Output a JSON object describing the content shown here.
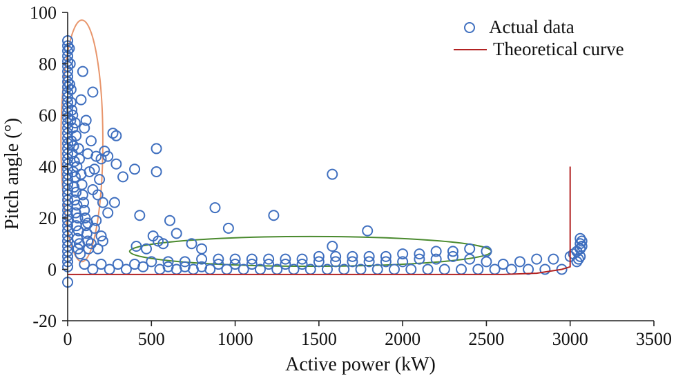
{
  "chart_data": {
    "type": "scatter",
    "title": "",
    "xlabel": "Active power (kW)",
    "ylabel": "Pitch angle (°)",
    "xlim": [
      0,
      3500
    ],
    "ylim": [
      -20,
      100
    ],
    "xticks": [
      "0",
      "500",
      "1000",
      "1500",
      "2000",
      "2500",
      "3000",
      "3500"
    ],
    "yticks": [
      "-20",
      "0",
      "20",
      "40",
      "60",
      "80",
      "100"
    ],
    "grid": false,
    "legend_position": "top-right",
    "series": [
      {
        "name": "Actual data",
        "marker": "open-circle",
        "color": "#3f6fbf",
        "points": [
          [
            0,
            89
          ],
          [
            0,
            87
          ],
          [
            0,
            85
          ],
          [
            0,
            83
          ],
          [
            0,
            81
          ],
          [
            0,
            79
          ],
          [
            0,
            77
          ],
          [
            0,
            75
          ],
          [
            0,
            73
          ],
          [
            0,
            71
          ],
          [
            0,
            69
          ],
          [
            0,
            67
          ],
          [
            0,
            65
          ],
          [
            0,
            63
          ],
          [
            0,
            61
          ],
          [
            0,
            59
          ],
          [
            0,
            57
          ],
          [
            0,
            55
          ],
          [
            0,
            53
          ],
          [
            0,
            51
          ],
          [
            0,
            49
          ],
          [
            0,
            47
          ],
          [
            0,
            45
          ],
          [
            0,
            43
          ],
          [
            0,
            41
          ],
          [
            0,
            39
          ],
          [
            0,
            37
          ],
          [
            0,
            35
          ],
          [
            0,
            33
          ],
          [
            0,
            31
          ],
          [
            0,
            29
          ],
          [
            0,
            27
          ],
          [
            0,
            25
          ],
          [
            0,
            23
          ],
          [
            0,
            21
          ],
          [
            0,
            19
          ],
          [
            0,
            17
          ],
          [
            0,
            15
          ],
          [
            0,
            13
          ],
          [
            0,
            11
          ],
          [
            0,
            9
          ],
          [
            0,
            7
          ],
          [
            0,
            5
          ],
          [
            0,
            3
          ],
          [
            0,
            1
          ],
          [
            0,
            -5
          ],
          [
            10,
            86
          ],
          [
            15,
            80
          ],
          [
            12,
            72
          ],
          [
            20,
            70
          ],
          [
            25,
            62
          ],
          [
            18,
            58
          ],
          [
            30,
            55
          ],
          [
            22,
            50
          ],
          [
            35,
            48
          ],
          [
            28,
            45
          ],
          [
            40,
            42
          ],
          [
            33,
            38
          ],
          [
            45,
            36
          ],
          [
            38,
            32
          ],
          [
            50,
            30
          ],
          [
            42,
            27
          ],
          [
            55,
            25
          ],
          [
            48,
            22
          ],
          [
            60,
            20
          ],
          [
            52,
            17
          ],
          [
            65,
            15
          ],
          [
            58,
            12
          ],
          [
            70,
            10
          ],
          [
            62,
            8
          ],
          [
            75,
            6
          ],
          [
            20,
            65
          ],
          [
            30,
            60
          ],
          [
            45,
            57
          ],
          [
            50,
            52
          ],
          [
            65,
            47
          ],
          [
            70,
            43
          ],
          [
            55,
            40
          ],
          [
            80,
            37
          ],
          [
            85,
            33
          ],
          [
            90,
            29
          ],
          [
            95,
            26
          ],
          [
            100,
            23
          ],
          [
            105,
            20
          ],
          [
            110,
            17
          ],
          [
            115,
            14
          ],
          [
            120,
            11
          ],
          [
            125,
            8
          ],
          [
            90,
            77
          ],
          [
            150,
            69
          ],
          [
            80,
            66
          ],
          [
            110,
            58
          ],
          [
            100,
            55
          ],
          [
            140,
            50
          ],
          [
            120,
            45
          ],
          [
            170,
            44
          ],
          [
            220,
            46
          ],
          [
            200,
            43
          ],
          [
            160,
            39
          ],
          [
            130,
            38
          ],
          [
            190,
            35
          ],
          [
            150,
            31
          ],
          [
            180,
            29
          ],
          [
            210,
            26
          ],
          [
            240,
            22
          ],
          [
            170,
            19
          ],
          [
            120,
            18
          ],
          [
            160,
            16
          ],
          [
            200,
            13
          ],
          [
            140,
            10
          ],
          [
            180,
            8
          ],
          [
            270,
            53
          ],
          [
            290,
            52
          ],
          [
            240,
            44
          ],
          [
            290,
            41
          ],
          [
            330,
            36
          ],
          [
            400,
            39
          ],
          [
            280,
            26
          ],
          [
            210,
            11
          ],
          [
            530,
            47
          ],
          [
            530,
            38
          ],
          [
            430,
            21
          ],
          [
            610,
            19
          ],
          [
            650,
            14
          ],
          [
            510,
            13
          ],
          [
            540,
            11
          ],
          [
            570,
            10
          ],
          [
            740,
            10
          ],
          [
            800,
            8
          ],
          [
            410,
            9
          ],
          [
            470,
            8
          ],
          [
            880,
            24
          ],
          [
            960,
            16
          ],
          [
            1230,
            21
          ],
          [
            1580,
            37
          ],
          [
            1580,
            9
          ],
          [
            1790,
            15
          ],
          [
            500,
            3
          ],
          [
            600,
            3
          ],
          [
            700,
            3
          ],
          [
            800,
            4
          ],
          [
            900,
            4
          ],
          [
            1000,
            4
          ],
          [
            1100,
            4
          ],
          [
            1200,
            4
          ],
          [
            1300,
            4
          ],
          [
            1400,
            4
          ],
          [
            1500,
            5
          ],
          [
            1600,
            5
          ],
          [
            1700,
            5
          ],
          [
            1800,
            5
          ],
          [
            1900,
            5
          ],
          [
            2000,
            6
          ],
          [
            2100,
            6
          ],
          [
            2200,
            7
          ],
          [
            2300,
            7
          ],
          [
            2400,
            8
          ],
          [
            2500,
            7
          ],
          [
            600,
            1
          ],
          [
            700,
            1
          ],
          [
            800,
            1
          ],
          [
            900,
            2
          ],
          [
            1000,
            2
          ],
          [
            1100,
            2
          ],
          [
            1200,
            2
          ],
          [
            1300,
            2
          ],
          [
            1400,
            2
          ],
          [
            1500,
            3
          ],
          [
            1600,
            3
          ],
          [
            1700,
            3
          ],
          [
            1800,
            3
          ],
          [
            1900,
            3
          ],
          [
            2000,
            3
          ],
          [
            2100,
            4
          ],
          [
            2200,
            4
          ],
          [
            2300,
            5
          ],
          [
            2400,
            4
          ],
          [
            2500,
            3
          ],
          [
            2600,
            2
          ],
          [
            2700,
            3
          ],
          [
            2800,
            4
          ],
          [
            2900,
            4
          ],
          [
            3000,
            5
          ],
          [
            3020,
            6
          ],
          [
            3040,
            7
          ],
          [
            3060,
            8
          ],
          [
            3060,
            10
          ],
          [
            3060,
            12
          ],
          [
            3050,
            4
          ],
          [
            3040,
            3
          ],
          [
            3060,
            5
          ],
          [
            3070,
            9
          ],
          [
            3070,
            11
          ],
          [
            100,
            2
          ],
          [
            200,
            2
          ],
          [
            300,
            2
          ],
          [
            400,
            2
          ],
          [
            150,
            0
          ],
          [
            250,
            0
          ],
          [
            350,
            0
          ],
          [
            450,
            1
          ],
          [
            550,
            0
          ],
          [
            650,
            0
          ],
          [
            750,
            0
          ],
          [
            850,
            0
          ],
          [
            950,
            0
          ],
          [
            1050,
            0
          ],
          [
            1150,
            0
          ],
          [
            1250,
            0
          ],
          [
            1350,
            0
          ],
          [
            1450,
            0
          ],
          [
            1550,
            0
          ],
          [
            1650,
            0
          ],
          [
            1750,
            0
          ],
          [
            1850,
            0
          ],
          [
            1950,
            0
          ],
          [
            2050,
            0
          ],
          [
            2150,
            0
          ],
          [
            2250,
            0
          ],
          [
            2350,
            0
          ],
          [
            2450,
            0
          ],
          [
            2550,
            0
          ],
          [
            2650,
            0
          ],
          [
            2750,
            0
          ],
          [
            2850,
            0
          ],
          [
            2950,
            0
          ]
        ]
      },
      {
        "name": "Theoretical curve",
        "color": "#b22222",
        "points": [
          [
            0,
            -2
          ],
          [
            2600,
            -2
          ],
          [
            2800,
            -1.5
          ],
          [
            2950,
            0
          ],
          [
            3000,
            1
          ],
          [
            3000,
            40
          ]
        ]
      }
    ],
    "annotations": [
      {
        "shape": "ellipse",
        "color": "#e8956b",
        "cx": 85,
        "cy": 50,
        "rx": 125,
        "ry": 47
      },
      {
        "shape": "ellipse",
        "color": "#4a8a2e",
        "cx": 1450,
        "cy": 7,
        "rx": 1080,
        "ry": 5.8
      }
    ]
  }
}
